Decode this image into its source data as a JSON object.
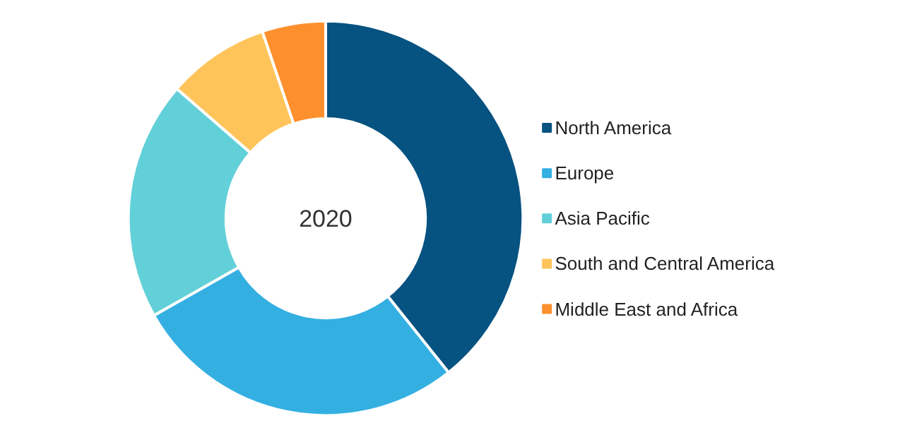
{
  "chart_data": {
    "type": "donut",
    "title": "2020",
    "categories": [
      "North America",
      " Europe",
      "Asia Pacific",
      "South and Central America",
      "Middle East and Africa"
    ],
    "values": [
      39.3,
      27.5,
      19.6,
      8.4,
      5.2
    ],
    "colors": [
      "#065280",
      "#33afe2",
      "#62d0d8",
      "#fec45a",
      "#fd8f2d"
    ],
    "legend": "right"
  }
}
